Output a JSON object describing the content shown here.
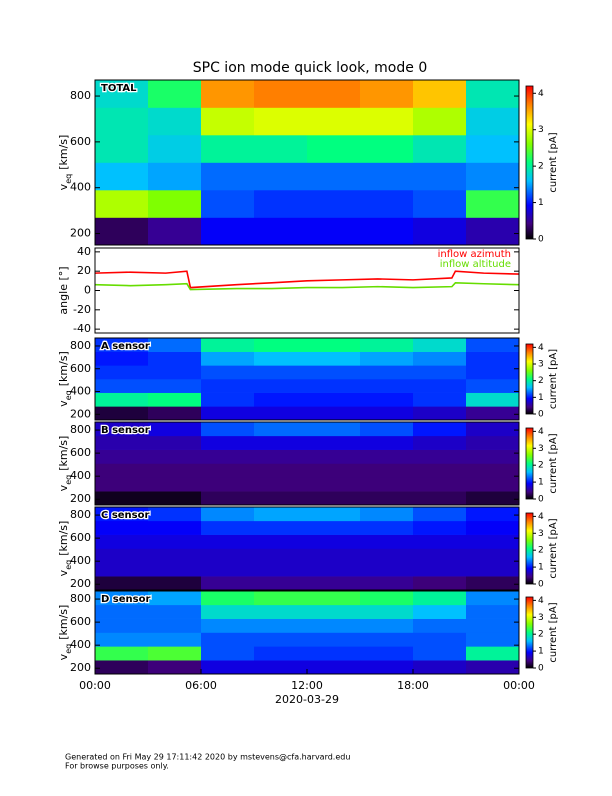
{
  "chart_data": [
    {
      "type": "heatmap",
      "title": "SPC ion mode quick look, mode 0",
      "label": "TOTAL",
      "ylabel": "v",
      "ylabel_sub": "eq",
      "ylabel_unit": "[km/s]",
      "cbar_label": "current [pA]",
      "xlim": [
        0,
        24
      ],
      "ylim": [
        150,
        870
      ],
      "yticks": [
        200,
        400,
        600,
        800
      ],
      "clim": [
        0,
        4.2
      ],
      "cticks": [
        0,
        1,
        2,
        3,
        4
      ],
      "xbins": [
        0,
        3,
        6,
        9,
        12,
        15,
        18,
        21,
        24
      ],
      "ybins": [
        150,
        270,
        390,
        510,
        630,
        750,
        870
      ],
      "values": [
        [
          0.3,
          2.8,
          1.6,
          1.9,
          1.9,
          1.8
        ],
        [
          0.5,
          2.6,
          1.5,
          1.7,
          1.8,
          2.2
        ],
        [
          0.9,
          1.2,
          1.3,
          2.0,
          2.9,
          3.6
        ],
        [
          0.9,
          1.1,
          1.3,
          2.0,
          3.0,
          3.7
        ],
        [
          0.9,
          1.1,
          1.3,
          2.1,
          3.0,
          3.7
        ],
        [
          0.9,
          1.1,
          1.3,
          2.1,
          3.0,
          3.6
        ],
        [
          0.8,
          1.2,
          1.3,
          1.9,
          2.8,
          3.4
        ],
        [
          0.6,
          2.3,
          1.4,
          1.6,
          1.7,
          1.9
        ]
      ]
    },
    {
      "type": "line",
      "ylabel": "angle [°]",
      "xlim": [
        0,
        24
      ],
      "ylim": [
        -44,
        44
      ],
      "yticks": [
        -40,
        -20,
        0,
        20,
        40
      ],
      "x": [
        0,
        2,
        4,
        5.2,
        5.4,
        8,
        10,
        12,
        14,
        16,
        18,
        20.2,
        20.4,
        22,
        24
      ],
      "series": [
        {
          "name": "inflow azimuth",
          "color": "#ff0000",
          "values": [
            18,
            19,
            18,
            20,
            3,
            6,
            8,
            10,
            11,
            12,
            11,
            13,
            20,
            18,
            17
          ]
        },
        {
          "name": "inflow altitude",
          "color": "#66dd00",
          "values": [
            6,
            5,
            6,
            7,
            1,
            2,
            2,
            3,
            3,
            4,
            3,
            4,
            8,
            7,
            6
          ]
        }
      ]
    },
    {
      "type": "heatmap",
      "label": "A sensor",
      "ylabel": "v",
      "ylabel_sub": "eq",
      "ylabel_unit": "[km/s]",
      "cbar_label": "current [pA]",
      "xlim": [
        0,
        24
      ],
      "ylim": [
        150,
        870
      ],
      "yticks": [
        200,
        400,
        600,
        800
      ],
      "clim": [
        0,
        4.2
      ],
      "cticks": [
        0,
        1,
        2,
        3,
        4
      ],
      "xbins": [
        0,
        3,
        6,
        9,
        12,
        15,
        18,
        21,
        24
      ],
      "ybins": [
        150,
        270,
        390,
        510,
        630,
        750,
        870
      ],
      "values": [
        [
          0.2,
          2.0,
          1.2,
          1.1,
          1.0,
          1.1
        ],
        [
          0.3,
          2.1,
          1.2,
          1.1,
          1.1,
          1.3
        ],
        [
          0.8,
          1.1,
          1.1,
          1.2,
          1.5,
          2.0
        ],
        [
          0.8,
          1.0,
          1.1,
          1.2,
          1.6,
          2.1
        ],
        [
          0.8,
          1.0,
          1.1,
          1.2,
          1.6,
          2.1
        ],
        [
          0.8,
          1.0,
          1.1,
          1.2,
          1.5,
          2.0
        ],
        [
          0.7,
          1.1,
          1.1,
          1.2,
          1.4,
          1.8
        ],
        [
          0.5,
          1.8,
          1.2,
          1.1,
          1.1,
          1.2
        ]
      ]
    },
    {
      "type": "heatmap",
      "label": "B sensor",
      "ylabel": "v",
      "ylabel_sub": "eq",
      "ylabel_unit": "[km/s]",
      "cbar_label": "current [pA]",
      "xlim": [
        0,
        24
      ],
      "ylim": [
        150,
        870
      ],
      "yticks": [
        200,
        400,
        600,
        800
      ],
      "clim": [
        0,
        4.2
      ],
      "cticks": [
        0,
        1,
        2,
        3,
        4
      ],
      "xbins": [
        0,
        3,
        6,
        9,
        12,
        15,
        18,
        21,
        24
      ],
      "ybins": [
        150,
        270,
        390,
        510,
        630,
        750,
        870
      ],
      "values": [
        [
          0.1,
          0.4,
          0.4,
          0.5,
          0.6,
          0.7
        ],
        [
          0.1,
          0.4,
          0.4,
          0.5,
          0.6,
          0.8
        ],
        [
          0.3,
          0.4,
          0.4,
          0.5,
          0.8,
          1.2
        ],
        [
          0.3,
          0.4,
          0.4,
          0.5,
          0.8,
          1.3
        ],
        [
          0.3,
          0.4,
          0.4,
          0.5,
          0.8,
          1.3
        ],
        [
          0.3,
          0.4,
          0.4,
          0.5,
          0.8,
          1.2
        ],
        [
          0.3,
          0.4,
          0.4,
          0.5,
          0.7,
          1.0
        ],
        [
          0.2,
          0.4,
          0.4,
          0.5,
          0.6,
          0.7
        ]
      ]
    },
    {
      "type": "heatmap",
      "label": "C sensor",
      "ylabel": "v",
      "ylabel_sub": "eq",
      "ylabel_unit": "[km/s]",
      "cbar_label": "current [pA]",
      "xlim": [
        0,
        24
      ],
      "ylim": [
        150,
        870
      ],
      "yticks": [
        200,
        400,
        600,
        800
      ],
      "clim": [
        0,
        4.2
      ],
      "cticks": [
        0,
        1,
        2,
        3,
        4
      ],
      "xbins": [
        0,
        3,
        6,
        9,
        12,
        15,
        18,
        21,
        24
      ],
      "ybins": [
        150,
        270,
        390,
        510,
        630,
        750,
        870
      ],
      "values": [
        [
          0.2,
          0.7,
          0.7,
          0.8,
          0.9,
          1.0
        ],
        [
          0.2,
          0.7,
          0.7,
          0.8,
          0.9,
          1.1
        ],
        [
          0.5,
          0.7,
          0.7,
          0.8,
          1.1,
          1.4
        ],
        [
          0.5,
          0.7,
          0.7,
          0.8,
          1.1,
          1.5
        ],
        [
          0.5,
          0.7,
          0.7,
          0.8,
          1.1,
          1.5
        ],
        [
          0.5,
          0.7,
          0.7,
          0.8,
          1.1,
          1.4
        ],
        [
          0.4,
          0.7,
          0.7,
          0.8,
          1.0,
          1.2
        ],
        [
          0.3,
          0.7,
          0.7,
          0.8,
          0.9,
          1.0
        ]
      ]
    },
    {
      "type": "heatmap",
      "label": "D sensor",
      "ylabel": "v",
      "ylabel_sub": "eq",
      "ylabel_unit": "[km/s]",
      "cbar_label": "current [pA]",
      "xlim": [
        0,
        24
      ],
      "ylim": [
        150,
        870
      ],
      "yticks": [
        200,
        400,
        600,
        800
      ],
      "clim": [
        0,
        4.2
      ],
      "cticks": [
        0,
        1,
        2,
        3,
        4
      ],
      "xbins": [
        0,
        3,
        6,
        9,
        12,
        15,
        18,
        21,
        24
      ],
      "ybins": [
        150,
        270,
        390,
        510,
        630,
        750,
        870
      ],
      "values": [
        [
          0.3,
          2.3,
          1.4,
          1.3,
          1.3,
          1.4
        ],
        [
          0.4,
          2.4,
          1.4,
          1.3,
          1.3,
          1.5
        ],
        [
          0.8,
          1.2,
          1.2,
          1.4,
          1.8,
          2.2
        ],
        [
          0.8,
          1.1,
          1.2,
          1.4,
          1.8,
          2.3
        ],
        [
          0.8,
          1.1,
          1.2,
          1.4,
          1.8,
          2.3
        ],
        [
          0.8,
          1.1,
          1.2,
          1.4,
          1.8,
          2.2
        ],
        [
          0.7,
          1.2,
          1.2,
          1.3,
          1.6,
          2.0
        ],
        [
          0.6,
          2.0,
          1.3,
          1.3,
          1.3,
          1.4
        ]
      ],
      "xlabel": "2020-03-29",
      "xticks": [
        {
          "value": 0,
          "label": "00:00"
        },
        {
          "value": 6,
          "label": "06:00"
        },
        {
          "value": 12,
          "label": "12:00"
        },
        {
          "value": 18,
          "label": "18:00"
        },
        {
          "value": 24,
          "label": "00:00"
        }
      ]
    }
  ],
  "footer": [
    "Generated on Fri May 29 17:11:42 2020 by mstevens@cfa.harvard.edu",
    "For browse purposes only."
  ]
}
